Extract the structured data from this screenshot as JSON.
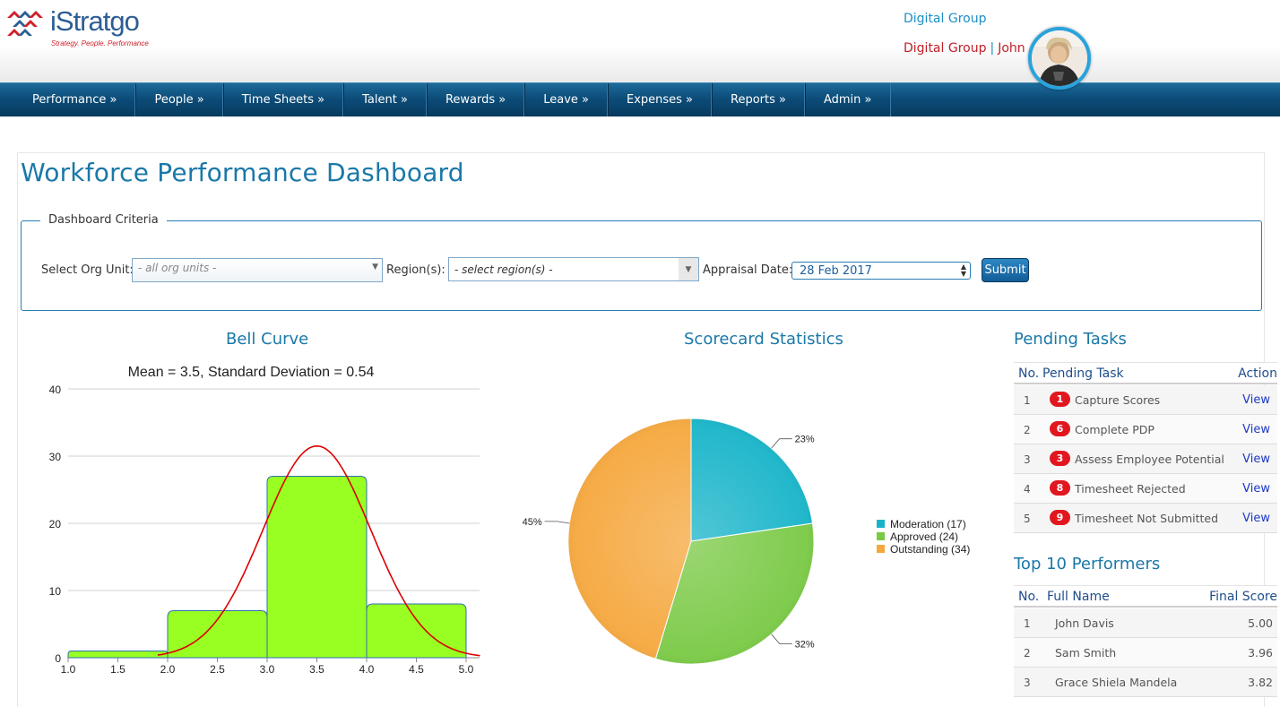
{
  "brand": {
    "name": "iStratgo",
    "tagline": "Strategy. People. Performance"
  },
  "user": {
    "org_top": "Digital Group",
    "org": "Digital Group",
    "separator": "|",
    "name": "John"
  },
  "nav": {
    "items": [
      "Performance »",
      "People »",
      "Time Sheets »",
      "Talent »",
      "Rewards »",
      "Leave »",
      "Expenses »",
      "Reports »",
      "Admin »"
    ]
  },
  "page": {
    "title": "Workforce Performance Dashboard"
  },
  "criteria": {
    "legend": "Dashboard Criteria",
    "org_unit_label": "Select Org Unit:",
    "org_unit_value": "- all org units -",
    "region_label": "Region(s):",
    "region_value": "- select region(s) -",
    "date_label": "Appraisal Date:",
    "date_value": "28 Feb 2017",
    "submit_label": "Submit"
  },
  "bell_curve": {
    "section_title": "Bell Curve",
    "chart_data": {
      "type": "bar",
      "title": "Mean = 3.5, Standard Deviation = 0.54",
      "bin_edges": [
        1.0,
        2.0,
        3.0,
        4.0,
        5.0
      ],
      "values": [
        1,
        7,
        27,
        8
      ],
      "x_ticks": [
        "1.0",
        "1.5",
        "2.0",
        "2.5",
        "3.0",
        "3.5",
        "4.0",
        "4.5",
        "5.0"
      ],
      "y_ticks": [
        "0",
        "10",
        "20",
        "30",
        "40"
      ],
      "ylim": [
        0,
        40
      ],
      "xlim": [
        1.0,
        5.0
      ],
      "curve": {
        "mean": 3.5,
        "std": 0.54,
        "peak": 31.5,
        "x_range": [
          1.9,
          5.15
        ]
      },
      "bar_color": "#99ff22",
      "curve_color": "#dd0000"
    }
  },
  "scorecard": {
    "section_title": "Scorecard Statistics",
    "chart_data": {
      "type": "pie",
      "slices": [
        {
          "label": "Moderation",
          "value": 17,
          "legend": "Moderation (17)",
          "pct": "23%",
          "color": "#17b4c9"
        },
        {
          "label": "Approved",
          "value": 24,
          "legend": "Approved (24)",
          "pct": "32%",
          "color": "#79c944"
        },
        {
          "label": "Outstanding",
          "value": 34,
          "legend": "Outstanding (34)",
          "pct": "45%",
          "color": "#f5a73d"
        }
      ]
    }
  },
  "pending": {
    "title": "Pending Tasks",
    "headers": {
      "no": "No.",
      "task": "Pending Task",
      "action": "Action"
    },
    "rows": [
      {
        "no": "1",
        "count": "1",
        "task": "Capture Scores",
        "action": "View"
      },
      {
        "no": "2",
        "count": "6",
        "task": "Complete PDP",
        "action": "View"
      },
      {
        "no": "3",
        "count": "3",
        "task": "Assess Employee Potential",
        "action": "View"
      },
      {
        "no": "4",
        "count": "8",
        "task": "Timesheet Rejected",
        "action": "View"
      },
      {
        "no": "5",
        "count": "9",
        "task": "Timesheet Not Submitted",
        "action": "View"
      }
    ]
  },
  "performers": {
    "title": "Top 10 Performers",
    "headers": {
      "no": "No.",
      "name": "Full Name",
      "score": "Final Score"
    },
    "rows": [
      {
        "no": "1",
        "name": "John Davis",
        "score": "5.00"
      },
      {
        "no": "2",
        "name": "Sam Smith",
        "score": "3.96"
      },
      {
        "no": "3",
        "name": "Grace Shiela Mandela",
        "score": "3.82"
      }
    ]
  },
  "colors": {
    "accent": "#1a78a8",
    "nav_bg": "#0c4d79",
    "alert_red": "#e2161f",
    "brand_red": "#c0202a"
  }
}
